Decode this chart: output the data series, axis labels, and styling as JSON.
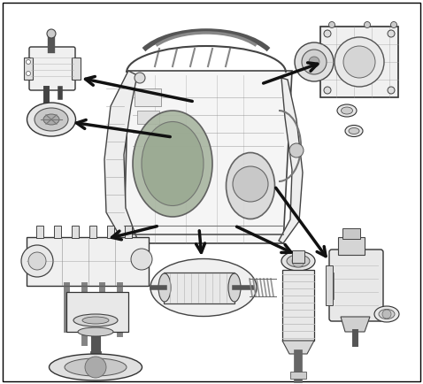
{
  "bg_color": "#ffffff",
  "border_color": "#000000",
  "fig_width": 4.78,
  "fig_height": 4.34,
  "dpi": 100,
  "image_data": ""
}
